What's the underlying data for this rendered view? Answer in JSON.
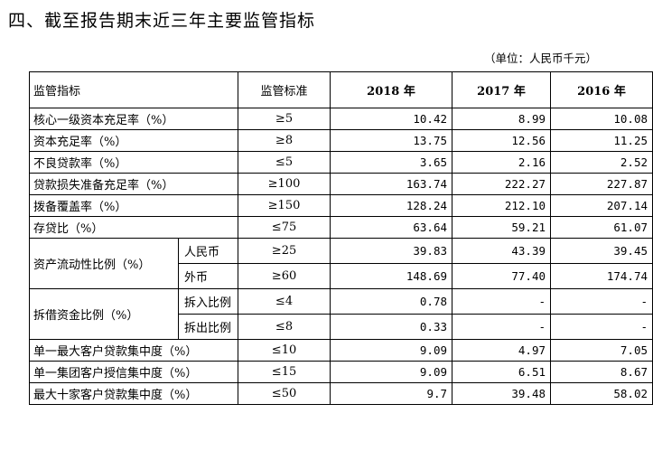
{
  "title": "四、截至报告期末近三年主要监管指标",
  "unit": "（单位：人民币千元）",
  "header": {
    "indicator": "监管指标",
    "standard": "监管标准",
    "y2018": "2018 年",
    "y2017": "2017 年",
    "y2016": "2016 年"
  },
  "rows": [
    {
      "name": "核心一级资本充足率（%）",
      "std": "≥5",
      "v2018": "10.42",
      "v2017": "8.99",
      "v2016": "10.08"
    },
    {
      "name": "资本充足率（%）",
      "std": "≥8",
      "v2018": "13.75",
      "v2017": "12.56",
      "v2016": "11.25"
    },
    {
      "name": "不良贷款率（%）",
      "std": "≤5",
      "v2018": "3.65",
      "v2017": "2.16",
      "v2016": "2.52"
    },
    {
      "name": "贷款损失准备充足率（%）",
      "std": "≥100",
      "v2018": "163.74",
      "v2017": "222.27",
      "v2016": "227.87"
    },
    {
      "name": "拨备覆盖率（%）",
      "std": "≥150",
      "v2018": "128.24",
      "v2017": "212.10",
      "v2016": "207.14"
    },
    {
      "name": "存贷比（%）",
      "std": "≤75",
      "v2018": "63.64",
      "v2017": "59.21",
      "v2016": "61.07"
    }
  ],
  "liquidity": {
    "name": "资产流动性比例（%）",
    "rmb": {
      "sub": "人民币",
      "std": "≥25",
      "v2018": "39.83",
      "v2017": "43.39",
      "v2016": "39.45"
    },
    "fx": {
      "sub": "外币",
      "std": "≥60",
      "v2018": "148.69",
      "v2017": "77.40",
      "v2016": "174.74"
    }
  },
  "interbank": {
    "name": "拆借资金比例（%）",
    "in": {
      "sub": "拆入比例",
      "std": "≤4",
      "v2018": "0.78",
      "v2017": "-",
      "v2016": "-"
    },
    "out": {
      "sub": "拆出比例",
      "std": "≤8",
      "v2018": "0.33",
      "v2017": "-",
      "v2016": "-"
    }
  },
  "rows_tail": [
    {
      "name": "单一最大客户贷款集中度（%）",
      "std": "≤10",
      "v2018": "9.09",
      "v2017": "4.97",
      "v2016": "7.05"
    },
    {
      "name": "单一集团客户授信集中度（%）",
      "std": "≤15",
      "v2018": "9.09",
      "v2017": "6.51",
      "v2016": "8.67"
    },
    {
      "name": "最大十家客户贷款集中度（%）",
      "std": "≤50",
      "v2018": "9.7",
      "v2017": "39.48",
      "v2016": "58.02"
    }
  ]
}
